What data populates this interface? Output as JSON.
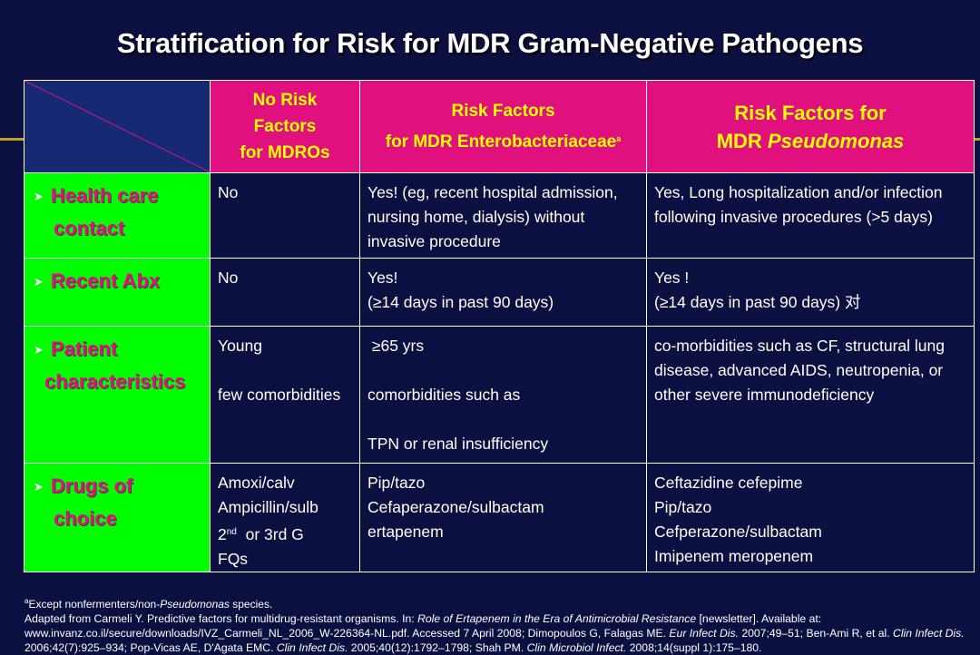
{
  "title": "Stratification for Risk for MDR Gram-Negative Pathogens",
  "colors": {
    "background": "#0c1040",
    "header_fill": "#e0117f",
    "header_text": "#ffff00",
    "row_label_fill": "#00ff00",
    "row_label_text": "#e0117f",
    "corner_fill": "#162a73",
    "accent": "#b9a51f"
  },
  "table": {
    "headers": {
      "col1": [
        "No Risk",
        "Factors",
        "for MDROs"
      ],
      "col2": [
        "Risk Factors",
        "for MDR Enterobacteriaceae"
      ],
      "col2_sup": "a",
      "col3_line1": "Risk Factors for",
      "col3_line2_prefix": "MDR ",
      "col3_line2_italic": "Pseudomonas"
    },
    "rows": [
      {
        "label": [
          "Health care",
          "contact"
        ],
        "col1": [
          "No"
        ],
        "col2": [
          "Yes! (eg, recent hospital admission,",
          "nursing home, dialysis) without",
          "invasive procedure"
        ],
        "col3": [
          "Yes, Long hospitalization and/or infection",
          "following invasive procedures (>5 days)"
        ]
      },
      {
        "label": [
          "Recent Abx"
        ],
        "col1": [
          "No"
        ],
        "col2": [
          "Yes!",
          "(≥14 days in past 90 days)"
        ],
        "col3": [
          "Yes !",
          "(≥14 days in past 90 days) 对"
        ]
      },
      {
        "label": [
          "Patient",
          "characteristics"
        ],
        "col1": [
          "Young",
          "",
          "few comorbidities"
        ],
        "col2": [
          " ≥65 yrs",
          "",
          "comorbidities such as",
          "",
          "TPN or renal insufficiency"
        ],
        "col3": [
          "co-morbidities such as CF, structural lung",
          "disease, advanced AIDS, neutropenia, or",
          "other severe immunodeficiency"
        ]
      },
      {
        "label": [
          "Drugs of",
          "choice"
        ],
        "col1": [
          "Amoxi/calv",
          "Ampicillin/sulb"
        ],
        "col1_gen_prefix": "2",
        "col1_gen_sup": "nd",
        "col1_gen_rest": "  or 3rd G",
        "col1_last": "FQs",
        "col2": [
          "Pip/tazo",
          "Cefaperazone/sulbactam",
          "ertapenem"
        ],
        "col3": [
          "Ceftazidine cefepime",
          "Pip/tazo",
          "Cefperazone/sulbactam",
          "Imipenem meropenem"
        ]
      }
    ]
  },
  "footnote": {
    "sup": "a",
    "prefix": "Except nonfermenters/non-",
    "italic": "Pseudomonas",
    "suffix": " species."
  },
  "reference": {
    "p1": "Adapted from Carmeli Y. Predictive factors for multidrug-resistant organisms. In: ",
    "i1": "Role of Ertapenem in the Era of Antimicrobial Resistance",
    "p2": " [newsletter]. Available at: www.invanz.co.il/secure/downloads/IVZ_Carmeli_NL_2006_W-226364-NL.pdf. Accessed 7 April 2008; Dimopoulos G, Falagas ME. ",
    "i2": "Eur Infect Dis.",
    "p3": " 2007;49–51; Ben-Ami R, et al. ",
    "i3": "Clin Infect Dis.",
    "p4": " 2006;42(7):925–934;  Pop-Vicas AE, D'Agata EMC. ",
    "i4": "Clin Infect Dis.",
    "p5": " 2005;40(12):1792–1798; Shah PM. ",
    "i5": "Clin Microbiol Infect.",
    "p6": " 2008;14(suppl 1):175–180."
  }
}
